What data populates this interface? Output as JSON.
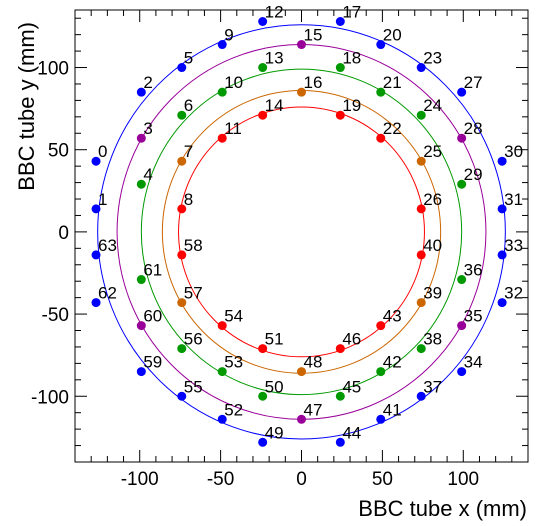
{
  "chart_data": {
    "type": "scatter",
    "xlabel": "BBC tube x (mm)",
    "ylabel": "BBC tube y (mm)",
    "xlim": [
      -140,
      140
    ],
    "ylim": [
      -140,
      135
    ],
    "x_ticks": [
      -100,
      -50,
      0,
      50,
      100
    ],
    "y_ticks": [
      -100,
      -50,
      0,
      50,
      100
    ],
    "x_tick_labels": [
      "-100",
      "-50",
      "0",
      "50",
      "100"
    ],
    "y_tick_labels": [
      "-100",
      "-50",
      "0",
      "50",
      "100"
    ],
    "grid": false,
    "legend": "none",
    "circles": [
      {
        "radius": 126,
        "color": "#0000ff"
      },
      {
        "radius": 114,
        "color": "#990099"
      },
      {
        "radius": 99,
        "color": "#009900"
      },
      {
        "radius": 86,
        "color": "#cc6600"
      },
      {
        "radius": 76,
        "color": "#ff0000"
      }
    ],
    "points": [
      {
        "label": "0",
        "x": -127,
        "y": 43,
        "color": "#0000ff"
      },
      {
        "label": "1",
        "x": -127,
        "y": 14,
        "color": "#0000ff"
      },
      {
        "label": "2",
        "x": -99,
        "y": 85,
        "color": "#0000ff"
      },
      {
        "label": "3",
        "x": -99,
        "y": 57,
        "color": "#990099"
      },
      {
        "label": "4",
        "x": -99,
        "y": 29,
        "color": "#009900"
      },
      {
        "label": "5",
        "x": -74,
        "y": 100,
        "color": "#0000ff"
      },
      {
        "label": "6",
        "x": -74,
        "y": 71,
        "color": "#009900"
      },
      {
        "label": "7",
        "x": -74,
        "y": 43,
        "color": "#cc6600"
      },
      {
        "label": "8",
        "x": -74,
        "y": 14,
        "color": "#ff0000"
      },
      {
        "label": "9",
        "x": -49,
        "y": 114,
        "color": "#0000ff"
      },
      {
        "label": "10",
        "x": -49,
        "y": 85,
        "color": "#009900"
      },
      {
        "label": "11",
        "x": -49,
        "y": 57,
        "color": "#ff0000"
      },
      {
        "label": "12",
        "x": -24,
        "y": 128,
        "color": "#0000ff"
      },
      {
        "label": "13",
        "x": -24,
        "y": 100,
        "color": "#009900"
      },
      {
        "label": "14",
        "x": -24,
        "y": 71,
        "color": "#ff0000"
      },
      {
        "label": "15",
        "x": 0,
        "y": 114,
        "color": "#990099"
      },
      {
        "label": "16",
        "x": 0,
        "y": 85,
        "color": "#cc6600"
      },
      {
        "label": "17",
        "x": 24,
        "y": 128,
        "color": "#0000ff"
      },
      {
        "label": "18",
        "x": 24,
        "y": 100,
        "color": "#009900"
      },
      {
        "label": "19",
        "x": 24,
        "y": 71,
        "color": "#ff0000"
      },
      {
        "label": "20",
        "x": 49,
        "y": 114,
        "color": "#0000ff"
      },
      {
        "label": "21",
        "x": 49,
        "y": 85,
        "color": "#009900"
      },
      {
        "label": "22",
        "x": 49,
        "y": 57,
        "color": "#ff0000"
      },
      {
        "label": "23",
        "x": 74,
        "y": 100,
        "color": "#0000ff"
      },
      {
        "label": "24",
        "x": 74,
        "y": 71,
        "color": "#009900"
      },
      {
        "label": "25",
        "x": 74,
        "y": 43,
        "color": "#cc6600"
      },
      {
        "label": "26",
        "x": 74,
        "y": 14,
        "color": "#ff0000"
      },
      {
        "label": "27",
        "x": 99,
        "y": 85,
        "color": "#0000ff"
      },
      {
        "label": "28",
        "x": 99,
        "y": 57,
        "color": "#990099"
      },
      {
        "label": "29",
        "x": 99,
        "y": 29,
        "color": "#009900"
      },
      {
        "label": "30",
        "x": 124,
        "y": 43,
        "color": "#0000ff"
      },
      {
        "label": "31",
        "x": 124,
        "y": 14,
        "color": "#0000ff"
      },
      {
        "label": "32",
        "x": 124,
        "y": -43,
        "color": "#0000ff"
      },
      {
        "label": "33",
        "x": 124,
        "y": -14,
        "color": "#0000ff"
      },
      {
        "label": "34",
        "x": 99,
        "y": -85,
        "color": "#0000ff"
      },
      {
        "label": "35",
        "x": 99,
        "y": -57,
        "color": "#990099"
      },
      {
        "label": "36",
        "x": 99,
        "y": -29,
        "color": "#009900"
      },
      {
        "label": "37",
        "x": 74,
        "y": -100,
        "color": "#0000ff"
      },
      {
        "label": "38",
        "x": 74,
        "y": -71,
        "color": "#009900"
      },
      {
        "label": "39",
        "x": 74,
        "y": -43,
        "color": "#cc6600"
      },
      {
        "label": "40",
        "x": 74,
        "y": -14,
        "color": "#ff0000"
      },
      {
        "label": "41",
        "x": 49,
        "y": -114,
        "color": "#0000ff"
      },
      {
        "label": "42",
        "x": 49,
        "y": -85,
        "color": "#009900"
      },
      {
        "label": "43",
        "x": 49,
        "y": -57,
        "color": "#ff0000"
      },
      {
        "label": "44",
        "x": 24,
        "y": -128,
        "color": "#0000ff"
      },
      {
        "label": "45",
        "x": 24,
        "y": -100,
        "color": "#009900"
      },
      {
        "label": "46",
        "x": 24,
        "y": -71,
        "color": "#ff0000"
      },
      {
        "label": "47",
        "x": 0,
        "y": -114,
        "color": "#990099"
      },
      {
        "label": "48",
        "x": 0,
        "y": -85,
        "color": "#cc6600"
      },
      {
        "label": "49",
        "x": -24,
        "y": -128,
        "color": "#0000ff"
      },
      {
        "label": "50",
        "x": -24,
        "y": -100,
        "color": "#009900"
      },
      {
        "label": "51",
        "x": -24,
        "y": -71,
        "color": "#ff0000"
      },
      {
        "label": "52",
        "x": -49,
        "y": -114,
        "color": "#0000ff"
      },
      {
        "label": "53",
        "x": -49,
        "y": -85,
        "color": "#009900"
      },
      {
        "label": "54",
        "x": -49,
        "y": -57,
        "color": "#ff0000"
      },
      {
        "label": "55",
        "x": -74,
        "y": -100,
        "color": "#0000ff"
      },
      {
        "label": "56",
        "x": -74,
        "y": -71,
        "color": "#009900"
      },
      {
        "label": "57",
        "x": -74,
        "y": -43,
        "color": "#cc6600"
      },
      {
        "label": "58",
        "x": -74,
        "y": -14,
        "color": "#ff0000"
      },
      {
        "label": "59",
        "x": -99,
        "y": -85,
        "color": "#0000ff"
      },
      {
        "label": "60",
        "x": -99,
        "y": -57,
        "color": "#990099"
      },
      {
        "label": "61",
        "x": -99,
        "y": -29,
        "color": "#009900"
      },
      {
        "label": "62",
        "x": -127,
        "y": -43,
        "color": "#0000ff"
      },
      {
        "label": "63",
        "x": -127,
        "y": -14,
        "color": "#0000ff"
      }
    ]
  }
}
